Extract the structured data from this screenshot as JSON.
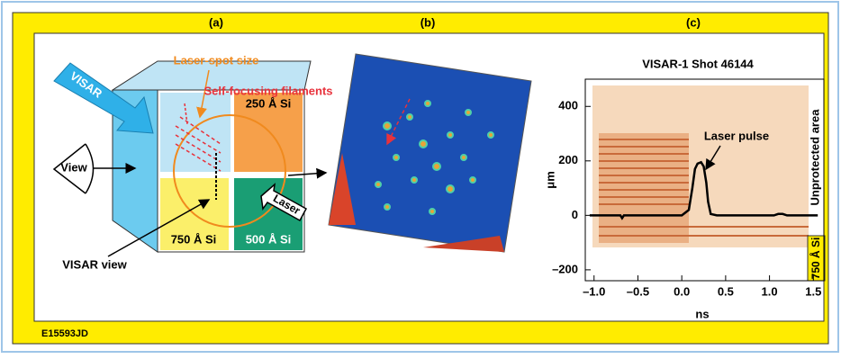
{
  "figure": {
    "panels": [
      "(a)",
      "(b)",
      "(c)"
    ],
    "code": "E15593JD",
    "diagram": {
      "laser_spot": "Laser-spot size",
      "filaments": "Self-focusing filaments",
      "visar": "VISAR",
      "view": "View",
      "si_250": "250 Å Si",
      "si_750": "750 Å Si",
      "si_500": "500 Å Si",
      "laser": "Laser",
      "visar_view": "VISAR view"
    }
  },
  "chart_data": {
    "type": "line",
    "title": "VISAR-1 Shot 46144",
    "x_label": "ns",
    "y_label": "μm",
    "x": [
      -1.05,
      -0.7,
      -0.68,
      -0.66,
      0.0,
      0.08,
      0.12,
      0.15,
      0.18,
      0.22,
      0.25,
      0.28,
      0.3,
      0.33,
      0.4,
      1.05,
      1.1,
      1.15,
      1.2,
      1.55
    ],
    "values": [
      0,
      0,
      -10,
      0,
      0,
      20,
      100,
      170,
      190,
      195,
      180,
      120,
      50,
      5,
      0,
      0,
      5,
      5,
      0,
      0
    ],
    "color": "#000000",
    "xlim": [
      -1.1,
      1.62
    ],
    "ylim": [
      -240,
      500
    ],
    "xticks": [
      {
        "value": -1.0,
        "label": "–1.0"
      },
      {
        "value": -0.5,
        "label": "–0.5"
      },
      {
        "value": 0,
        "label": "0.0"
      },
      0.5,
      {
        "value": 1.0,
        "label": "1.0"
      },
      1.5
    ],
    "yticks": [
      {
        "value": -200,
        "label": "–200"
      },
      0,
      200,
      400
    ],
    "annotations": {
      "pulse": "Laser pulse",
      "unprotected": "Unprotected area",
      "si": "750 Å Si"
    }
  }
}
